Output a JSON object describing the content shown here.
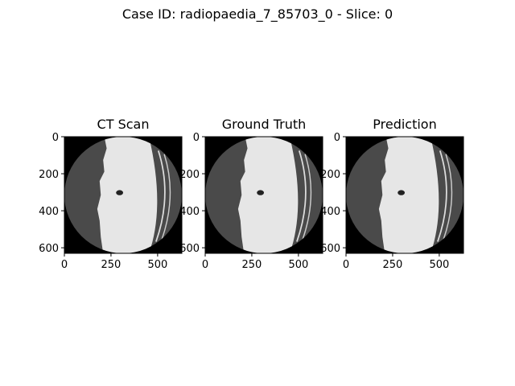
{
  "title": "Case ID: radiopaedia_7_85703_0 - Slice: 0",
  "chart_data": [
    {
      "type": "image",
      "title": "CT Scan",
      "xlim": [
        0,
        630
      ],
      "ylim": [
        630,
        0
      ],
      "xticks": [
        0,
        250,
        500
      ],
      "yticks": [
        0,
        200,
        400,
        600
      ]
    },
    {
      "type": "image",
      "title": "Ground Truth",
      "xlim": [
        0,
        630
      ],
      "ylim": [
        630,
        0
      ],
      "xticks": [
        0,
        250,
        500
      ],
      "yticks": [
        0,
        200,
        400,
        600
      ]
    },
    {
      "type": "image",
      "title": "Prediction",
      "xlim": [
        0,
        630
      ],
      "ylim": [
        630,
        0
      ],
      "xticks": [
        0,
        250,
        500
      ],
      "yticks": [
        0,
        200,
        400,
        600
      ]
    }
  ]
}
